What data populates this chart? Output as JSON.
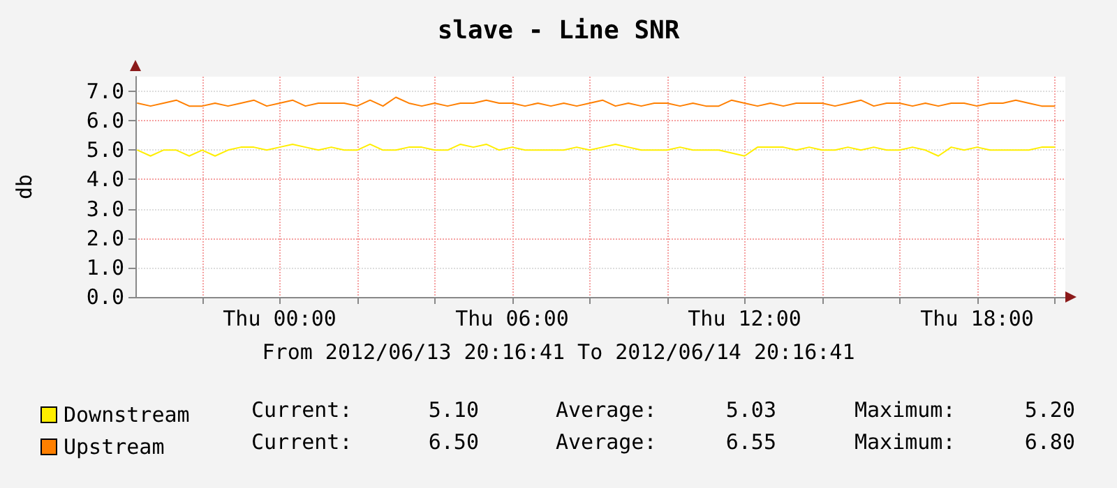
{
  "chart_data": {
    "type": "line",
    "title": "slave - Line SNR",
    "ylabel": "db",
    "x": [
      "2012-06-13T20:20",
      "2012-06-13T20:40",
      "2012-06-13T21:00",
      "2012-06-13T21:20",
      "2012-06-13T21:40",
      "2012-06-13T22:00",
      "2012-06-13T22:20",
      "2012-06-13T22:40",
      "2012-06-13T23:00",
      "2012-06-13T23:20",
      "2012-06-13T23:40",
      "2012-06-14T00:00",
      "2012-06-14T00:20",
      "2012-06-14T00:40",
      "2012-06-14T01:00",
      "2012-06-14T01:20",
      "2012-06-14T01:40",
      "2012-06-14T02:00",
      "2012-06-14T02:20",
      "2012-06-14T02:40",
      "2012-06-14T03:00",
      "2012-06-14T03:20",
      "2012-06-14T03:40",
      "2012-06-14T04:00",
      "2012-06-14T04:20",
      "2012-06-14T04:40",
      "2012-06-14T05:00",
      "2012-06-14T05:20",
      "2012-06-14T05:40",
      "2012-06-14T06:00",
      "2012-06-14T06:20",
      "2012-06-14T06:40",
      "2012-06-14T07:00",
      "2012-06-14T07:20",
      "2012-06-14T07:40",
      "2012-06-14T08:00",
      "2012-06-14T08:20",
      "2012-06-14T08:40",
      "2012-06-14T09:00",
      "2012-06-14T09:20",
      "2012-06-14T09:40",
      "2012-06-14T10:00",
      "2012-06-14T10:20",
      "2012-06-14T10:40",
      "2012-06-14T11:00",
      "2012-06-14T11:20",
      "2012-06-14T11:40",
      "2012-06-14T12:00",
      "2012-06-14T12:20",
      "2012-06-14T12:40",
      "2012-06-14T13:00",
      "2012-06-14T13:20",
      "2012-06-14T13:40",
      "2012-06-14T14:00",
      "2012-06-14T14:20",
      "2012-06-14T14:40",
      "2012-06-14T15:00",
      "2012-06-14T15:20",
      "2012-06-14T15:40",
      "2012-06-14T16:00",
      "2012-06-14T16:20",
      "2012-06-14T16:40",
      "2012-06-14T17:00",
      "2012-06-14T17:20",
      "2012-06-14T17:40",
      "2012-06-14T18:00",
      "2012-06-14T18:20",
      "2012-06-14T18:40",
      "2012-06-14T19:00",
      "2012-06-14T19:20",
      "2012-06-14T19:40",
      "2012-06-14T20:00"
    ],
    "series": [
      {
        "name": "Downstream",
        "color": "#ffee00",
        "values": [
          5.0,
          4.8,
          5.0,
          5.0,
          4.8,
          5.0,
          4.8,
          5.0,
          5.1,
          5.1,
          5.0,
          5.1,
          5.2,
          5.1,
          5.0,
          5.1,
          5.0,
          5.0,
          5.2,
          5.0,
          5.0,
          5.1,
          5.1,
          5.0,
          5.0,
          5.2,
          5.1,
          5.2,
          5.0,
          5.1,
          5.0,
          5.0,
          5.0,
          5.0,
          5.1,
          5.0,
          5.1,
          5.2,
          5.1,
          5.0,
          5.0,
          5.0,
          5.1,
          5.0,
          5.0,
          5.0,
          4.9,
          4.8,
          5.1,
          5.1,
          5.1,
          5.0,
          5.1,
          5.0,
          5.0,
          5.1,
          5.0,
          5.1,
          5.0,
          5.0,
          5.1,
          5.0,
          4.8,
          5.1,
          5.0,
          5.1,
          5.0,
          5.0,
          5.0,
          5.0,
          5.1,
          5.1
        ]
      },
      {
        "name": "Upstream",
        "color": "#ff7f00",
        "values": [
          6.6,
          6.5,
          6.6,
          6.7,
          6.5,
          6.5,
          6.6,
          6.5,
          6.6,
          6.7,
          6.5,
          6.6,
          6.7,
          6.5,
          6.6,
          6.6,
          6.6,
          6.5,
          6.7,
          6.5,
          6.8,
          6.6,
          6.5,
          6.6,
          6.5,
          6.6,
          6.6,
          6.7,
          6.6,
          6.6,
          6.5,
          6.6,
          6.5,
          6.6,
          6.5,
          6.6,
          6.7,
          6.5,
          6.6,
          6.5,
          6.6,
          6.6,
          6.5,
          6.6,
          6.5,
          6.5,
          6.7,
          6.6,
          6.5,
          6.6,
          6.5,
          6.6,
          6.6,
          6.6,
          6.5,
          6.6,
          6.7,
          6.5,
          6.6,
          6.6,
          6.5,
          6.6,
          6.5,
          6.6,
          6.6,
          6.5,
          6.6,
          6.6,
          6.7,
          6.6,
          6.5,
          6.5
        ]
      }
    ],
    "xlim": [
      "2012-06-13T20:16:41",
      "2012-06-14T20:16:41"
    ],
    "xticks": [
      {
        "value": "2012-06-13T22:00",
        "label": null
      },
      {
        "value": "2012-06-14T00:00",
        "label": "Thu 00:00"
      },
      {
        "value": "2012-06-14T02:00",
        "label": null
      },
      {
        "value": "2012-06-14T04:00",
        "label": null
      },
      {
        "value": "2012-06-14T06:00",
        "label": "Thu 06:00"
      },
      {
        "value": "2012-06-14T08:00",
        "label": null
      },
      {
        "value": "2012-06-14T10:00",
        "label": null
      },
      {
        "value": "2012-06-14T12:00",
        "label": "Thu 12:00"
      },
      {
        "value": "2012-06-14T14:00",
        "label": null
      },
      {
        "value": "2012-06-14T16:00",
        "label": null
      },
      {
        "value": "2012-06-14T18:00",
        "label": "Thu 18:00"
      },
      {
        "value": "2012-06-14T20:00",
        "label": null
      }
    ],
    "ylim": [
      0,
      7.5
    ],
    "yticks": [
      {
        "value": 0,
        "label": "0.0"
      },
      {
        "value": 1,
        "label": "1.0"
      },
      {
        "value": 2,
        "label": "2.0"
      },
      {
        "value": 3,
        "label": "3.0"
      },
      {
        "value": 4,
        "label": "4.0"
      },
      {
        "value": 5,
        "label": "5.0"
      },
      {
        "value": 6,
        "label": "6.0"
      },
      {
        "value": 7,
        "label": "7.0"
      }
    ],
    "grid": true,
    "legend": "bottom left",
    "marker": "none",
    "line_style": "solid",
    "annotations": [
      "From 2012/06/13 20:16:41 To 2012/06/14 20:16:41",
      "Current:",
      "5.10",
      "Average:",
      "5.03",
      "Maximum:",
      "5.20",
      "Current:",
      "6.50",
      "Average:",
      "6.55",
      "Maximum:",
      "6.80"
    ]
  }
}
